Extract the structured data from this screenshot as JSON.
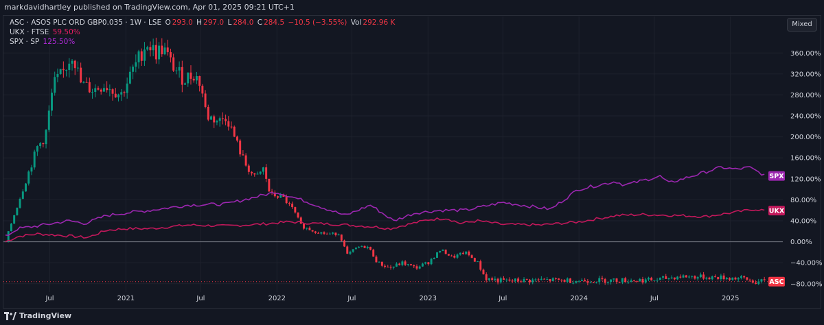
{
  "header": {
    "publish_line": "markdavidhartley published on TradingView.com, Apr 01, 2025 09:21 UTC+1"
  },
  "legend": {
    "asc": {
      "name": "ASC · ASOS PLC ORD GBP0.035 · 1W · LSE",
      "o_label": "O",
      "o": "293.0",
      "h_label": "H",
      "h": "297.0",
      "l_label": "L",
      "l": "284.0",
      "c_label": "C",
      "c": "284.5",
      "change": "−10.5 (−3.55%)",
      "vol_label": "Vol",
      "vol": "292.96 K"
    },
    "ukx": {
      "name": "UKX · FTSE",
      "value": "59.50%"
    },
    "spx": {
      "name": "SPX · SP",
      "value": "125.50%"
    }
  },
  "mode_button": "Mixed",
  "footer": {
    "brand": "TradingView"
  },
  "colors": {
    "background": "#131722",
    "candle_up": "#089981",
    "candle_down": "#f23645",
    "ukx_line": "#c2185b",
    "spx_line": "#9c27b0",
    "grid": "#1e222d",
    "zero_line": "#787b86"
  },
  "chart_data": {
    "type": "line",
    "yaxis": {
      "format": "percent",
      "ticks": [
        "360.00%",
        "320.00%",
        "280.00%",
        "240.00%",
        "200.00%",
        "160.00%",
        "120.00%",
        "80.00%",
        "40.00%",
        "0.00%",
        "−40.00%",
        "−80.00%"
      ],
      "range": [
        -100,
        390
      ]
    },
    "xaxis": {
      "ticks": [
        "Jul",
        "2021",
        "Jul",
        "2022",
        "Jul",
        "2023",
        "Jul",
        "2024",
        "Jul",
        "2025"
      ],
      "range": [
        "2020-03-16",
        "2025-04-01"
      ]
    },
    "series": [
      {
        "name": "ASC",
        "style": "candlestick-weekly",
        "badge": "ASC",
        "badge_color": "#f23645",
        "points": [
          [
            "2020-03-16",
            0
          ],
          [
            "2020-04-01",
            40
          ],
          [
            "2020-05-01",
            110
          ],
          [
            "2020-06-01",
            180
          ],
          [
            "2020-06-20",
            200
          ],
          [
            "2020-07-10",
            300
          ],
          [
            "2020-08-01",
            320
          ],
          [
            "2020-08-25",
            360
          ],
          [
            "2020-09-15",
            300
          ],
          [
            "2020-10-15",
            290
          ],
          [
            "2020-11-10",
            300
          ],
          [
            "2020-12-20",
            280
          ],
          [
            "2021-01-20",
            330
          ],
          [
            "2021-02-20",
            380
          ],
          [
            "2021-03-15",
            360
          ],
          [
            "2021-04-01",
            370
          ],
          [
            "2021-04-20",
            340
          ],
          [
            "2021-05-20",
            310
          ],
          [
            "2021-06-15",
            320
          ],
          [
            "2021-07-01",
            300
          ],
          [
            "2021-07-15",
            240
          ],
          [
            "2021-08-15",
            230
          ],
          [
            "2021-09-01",
            240
          ],
          [
            "2021-09-20",
            200
          ],
          [
            "2021-10-15",
            150
          ],
          [
            "2021-11-10",
            120
          ],
          [
            "2021-11-30",
            140
          ],
          [
            "2021-12-15",
            90
          ],
          [
            "2022-01-15",
            85
          ],
          [
            "2022-02-10",
            60
          ],
          [
            "2022-03-01",
            30
          ],
          [
            "2022-04-01",
            20
          ],
          [
            "2022-05-01",
            15
          ],
          [
            "2022-06-01",
            15
          ],
          [
            "2022-06-20",
            -25
          ],
          [
            "2022-07-15",
            -10
          ],
          [
            "2022-08-10",
            -10
          ],
          [
            "2022-09-01",
            -40
          ],
          [
            "2022-10-01",
            -50
          ],
          [
            "2022-11-01",
            -40
          ],
          [
            "2022-12-01",
            -50
          ],
          [
            "2023-01-01",
            -40
          ],
          [
            "2023-02-01",
            -15
          ],
          [
            "2023-03-01",
            -30
          ],
          [
            "2023-04-01",
            -20
          ],
          [
            "2023-05-01",
            -40
          ],
          [
            "2023-05-20",
            -70
          ],
          [
            "2023-07-01",
            -75
          ],
          [
            "2023-10-01",
            -73
          ],
          [
            "2024-01-01",
            -74
          ],
          [
            "2024-07-01",
            -73
          ],
          [
            "2024-09-01",
            -66
          ],
          [
            "2024-12-01",
            -68
          ],
          [
            "2025-02-01",
            -70
          ],
          [
            "2025-03-01",
            -77
          ],
          [
            "2025-03-28",
            -76
          ]
        ]
      },
      {
        "name": "UKX",
        "style": "line",
        "badge": "UKX",
        "badge_color": "#c2185b",
        "points": [
          [
            "2020-03-16",
            0
          ],
          [
            "2020-04-15",
            10
          ],
          [
            "2020-06-01",
            15
          ],
          [
            "2020-08-01",
            12
          ],
          [
            "2020-10-01",
            8
          ],
          [
            "2020-11-15",
            22
          ],
          [
            "2021-01-01",
            25
          ],
          [
            "2021-03-01",
            25
          ],
          [
            "2021-06-01",
            32
          ],
          [
            "2021-09-01",
            30
          ],
          [
            "2021-12-01",
            34
          ],
          [
            "2022-02-01",
            38
          ],
          [
            "2022-04-01",
            35
          ],
          [
            "2022-06-01",
            33
          ],
          [
            "2022-09-01",
            28
          ],
          [
            "2022-10-01",
            25
          ],
          [
            "2023-01-01",
            42
          ],
          [
            "2023-02-15",
            45
          ],
          [
            "2023-03-20",
            35
          ],
          [
            "2023-05-01",
            40
          ],
          [
            "2023-07-01",
            33
          ],
          [
            "2023-10-01",
            32
          ],
          [
            "2024-01-01",
            38
          ],
          [
            "2024-04-01",
            50
          ],
          [
            "2024-06-01",
            52
          ],
          [
            "2024-09-01",
            50
          ],
          [
            "2024-11-01",
            48
          ],
          [
            "2025-01-01",
            55
          ],
          [
            "2025-03-01",
            62
          ],
          [
            "2025-03-28",
            59.5
          ]
        ]
      },
      {
        "name": "SPX",
        "style": "line",
        "badge": "SPX",
        "badge_color": "#9c27b0",
        "points": [
          [
            "2020-03-16",
            10
          ],
          [
            "2020-04-15",
            25
          ],
          [
            "2020-06-01",
            30
          ],
          [
            "2020-08-15",
            40
          ],
          [
            "2020-09-25",
            35
          ],
          [
            "2020-11-15",
            50
          ],
          [
            "2021-01-01",
            55
          ],
          [
            "2021-03-01",
            60
          ],
          [
            "2021-06-01",
            70
          ],
          [
            "2021-09-01",
            72
          ],
          [
            "2021-12-30",
            95
          ],
          [
            "2022-03-01",
            80
          ],
          [
            "2022-06-15",
            50
          ],
          [
            "2022-08-15",
            70
          ],
          [
            "2022-10-10",
            40
          ],
          [
            "2022-12-01",
            55
          ],
          [
            "2023-02-01",
            60
          ],
          [
            "2023-04-01",
            60
          ],
          [
            "2023-07-01",
            75
          ],
          [
            "2023-10-25",
            62
          ],
          [
            "2023-12-30",
            100
          ],
          [
            "2024-03-30",
            115
          ],
          [
            "2024-04-20",
            108
          ],
          [
            "2024-07-15",
            125
          ],
          [
            "2024-08-05",
            112
          ],
          [
            "2024-11-10",
            135
          ],
          [
            "2024-12-10",
            142
          ],
          [
            "2025-01-15",
            138
          ],
          [
            "2025-02-15",
            142
          ],
          [
            "2025-03-28",
            125.5
          ]
        ]
      }
    ]
  }
}
